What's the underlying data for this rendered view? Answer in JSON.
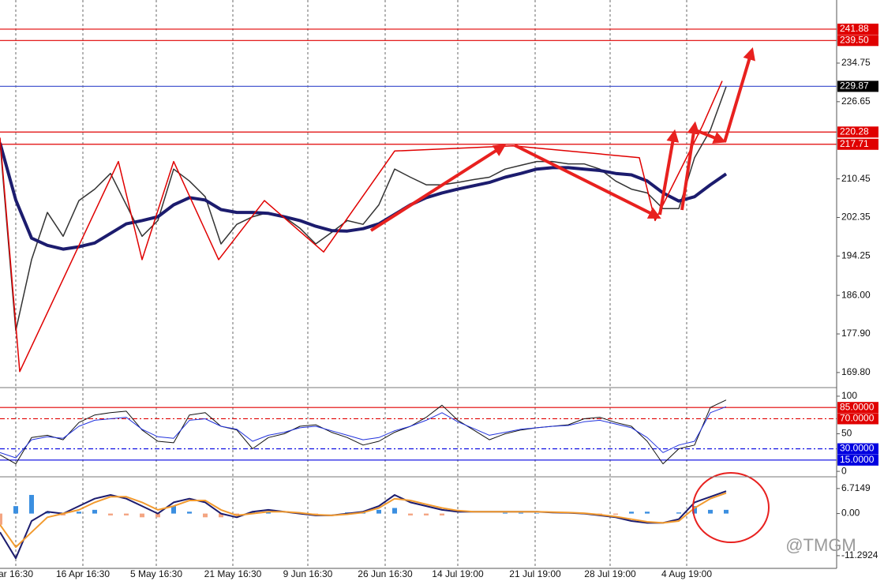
{
  "chart_data": [
    {
      "type": "line",
      "xlim": [
        0,
        53
      ],
      "ylim": [
        166.8,
        248
      ],
      "yticks": [
        234.75,
        226.65,
        210.45,
        202.35,
        194.25,
        {
          "value": 186,
          "label": "186.00"
        },
        {
          "value": 177.9,
          "label": "177.90"
        },
        {
          "value": 169.8,
          "label": "169.80"
        }
      ],
      "levels": [
        {
          "value": 241.88,
          "label": "241.88",
          "color": "#e00000",
          "dash": false
        },
        {
          "value": 239.5,
          "label": "239.50",
          "color": "#e00000",
          "dash": false
        },
        {
          "value": 229.87,
          "label": "229.87",
          "color": "#4a5bd0",
          "dash": false
        },
        {
          "value": 220.28,
          "label": "220.28",
          "color": "#e00000",
          "dash": false
        },
        {
          "value": 217.71,
          "label": "217.71",
          "color": "#e00000",
          "dash": false
        }
      ],
      "series": [
        {
          "color": "#333333",
          "width": 1.5,
          "values": [
            218.2,
            178.6,
            193.5,
            203.4,
            198.4,
            205.9,
            208.3,
            211.6,
            205,
            198.4,
            201.7,
            212.5,
            210,
            206.7,
            196.8,
            200.9,
            202.5,
            203.4,
            202.5,
            200.1,
            196.8,
            199.2,
            201.7,
            200.9,
            205,
            212.5,
            210.8,
            209.2,
            209.2,
            209.7,
            210.3,
            210.8,
            212.5,
            213.3,
            214.1,
            214.1,
            213.6,
            213.6,
            212.5,
            210,
            208.3,
            207.5,
            204.2,
            204.2,
            214.9,
            220.7,
            229.8
          ]
        },
        {
          "color": "#1c1c6e",
          "width": 4,
          "values": [
            218,
            206,
            198,
            196.5,
            195.7,
            196.2,
            197,
            199,
            201,
            201.7,
            202.5,
            205,
            206.5,
            206,
            204,
            203.4,
            203.4,
            203.2,
            202.5,
            201.7,
            200.5,
            199.6,
            199.5,
            200,
            201,
            203,
            205,
            206.5,
            207.5,
            208.3,
            209,
            209.7,
            210.8,
            211.6,
            212.5,
            212.8,
            212.8,
            212.5,
            212.2,
            211.6,
            211.3,
            210,
            207.5,
            205.8,
            206.7,
            209.2,
            211.5
          ]
        },
        {
          "color": "#e00000",
          "width": 1.5,
          "x": [
            0,
            1.25,
            7.5,
            9,
            11,
            13.85,
            16.75,
            20.5,
            25,
            32.5,
            40.5,
            41.5,
            44.5,
            45.75
          ],
          "values": [
            219.1,
            170,
            214.1,
            193.5,
            214.1,
            193.5,
            205.9,
            195.1,
            216.3,
            217.4,
            214.9,
            201.7,
            221.6,
            231
          ]
        }
      ]
    },
    {
      "type": "line",
      "xlim": [
        0,
        53
      ],
      "ylim": [
        -6.2,
        110.4
      ],
      "yticks": [
        100,
        50,
        0
      ],
      "levels": [
        {
          "value": 85,
          "label": "85.0000",
          "color": "#e00000",
          "dash": false
        },
        {
          "value": 70,
          "label": "70.0000",
          "color": "#e00000",
          "dash": true
        },
        {
          "value": 30,
          "label": "30.0000",
          "color": "#0000e0",
          "dash": true
        },
        {
          "value": 15,
          "label": "15.0000",
          "color": "#0000e0",
          "dash": false
        }
      ],
      "series": [
        {
          "color": "#111111",
          "width": 1,
          "values": [
            22,
            10,
            45,
            48,
            42,
            65,
            75,
            78,
            80,
            55,
            40,
            38,
            75,
            78,
            60,
            55,
            30,
            45,
            50,
            60,
            62,
            52,
            45,
            35,
            40,
            52,
            60,
            72,
            88,
            68,
            55,
            42,
            50,
            55,
            58,
            60,
            62,
            70,
            72,
            65,
            60,
            40,
            10,
            30,
            35,
            85,
            95
          ]
        },
        {
          "color": "#2233dd",
          "width": 1,
          "values": [
            25,
            18,
            42,
            46,
            44,
            60,
            68,
            70,
            72,
            56,
            46,
            44,
            68,
            70,
            60,
            56,
            40,
            48,
            52,
            58,
            60,
            54,
            48,
            42,
            45,
            54,
            60,
            68,
            78,
            66,
            57,
            48,
            52,
            56,
            58,
            60,
            61,
            66,
            68,
            63,
            58,
            45,
            25,
            35,
            40,
            78,
            86
          ]
        }
      ]
    },
    {
      "type": "macd",
      "xlim": [
        0,
        53
      ],
      "ylim": [
        -14.7,
        9.65
      ],
      "yticks": [
        6.7149,
        {
          "value": 0,
          "label": "0.00"
        },
        -11.2924
      ],
      "xticks": [
        {
          "value": 1,
          "label": "ar 16:30"
        },
        {
          "value": 5.25,
          "label": "16 Apr 16:30"
        },
        {
          "value": 9.9,
          "label": "5 May 16:30"
        },
        {
          "value": 14.75,
          "label": "21 May 16:30"
        },
        {
          "value": 19.5,
          "label": "9 Jun 16:30"
        },
        {
          "value": 24.4,
          "label": "26 Jun 16:30"
        },
        {
          "value": 29,
          "label": "14 Jul 19:00"
        },
        {
          "value": 33.9,
          "label": "21 Jul 19:00"
        },
        {
          "value": 38.65,
          "label": "28 Jul 19:00"
        },
        {
          "value": 43.5,
          "label": "4 Aug 19:00"
        }
      ],
      "histogram": {
        "color": "#3b8fe0",
        "negative_color": "#f4a582",
        "values": [
          -3,
          2,
          5,
          0.5,
          -0.5,
          0.5,
          1,
          -0.5,
          -0.5,
          -1,
          -1,
          2,
          0.5,
          -1,
          -1,
          -0.5,
          0.5,
          0.5,
          0,
          0,
          -0.3,
          0,
          0.3,
          0.5,
          1,
          1.5,
          -0.5,
          -0.5,
          -0.5,
          0,
          0,
          0,
          0.2,
          0.2,
          0.1,
          0,
          0,
          0,
          -0.3,
          -0.3,
          0.5,
          0.5,
          0,
          0.3,
          2,
          1,
          1
        ]
      },
      "series": [
        {
          "color": "#1c1c6e",
          "width": 2,
          "values": [
            -5,
            -12,
            -2,
            0.5,
            0,
            2,
            4,
            5,
            4,
            2,
            0,
            3,
            4,
            3,
            0,
            -1,
            0.5,
            1,
            0.5,
            0,
            -0.5,
            -0.5,
            0,
            0.5,
            2,
            5,
            3,
            2,
            1,
            0.5,
            0.5,
            0.5,
            0.5,
            0.5,
            0.5,
            0.3,
            0.2,
            0,
            -0.5,
            -1,
            -2,
            -2.5,
            -2.5,
            -1.5,
            3,
            4.5,
            6
          ]
        },
        {
          "color": "#f29a2e",
          "width": 2,
          "values": [
            -3,
            -9,
            -5,
            -1,
            0,
            1,
            3,
            4.5,
            4.5,
            3,
            1,
            2,
            3.5,
            3.5,
            1,
            -0.5,
            0,
            0.5,
            0.5,
            0.2,
            -0.3,
            -0.5,
            -0.2,
            0.3,
            1.5,
            4,
            3.5,
            2.5,
            1.5,
            0.8,
            0.5,
            0.5,
            0.5,
            0.5,
            0.5,
            0.4,
            0.3,
            0.1,
            -0.3,
            -0.8,
            -1.5,
            -2.2,
            -2.5,
            -2,
            1.5,
            4,
            5.5
          ]
        }
      ]
    }
  ],
  "watermark": "@TMGM"
}
